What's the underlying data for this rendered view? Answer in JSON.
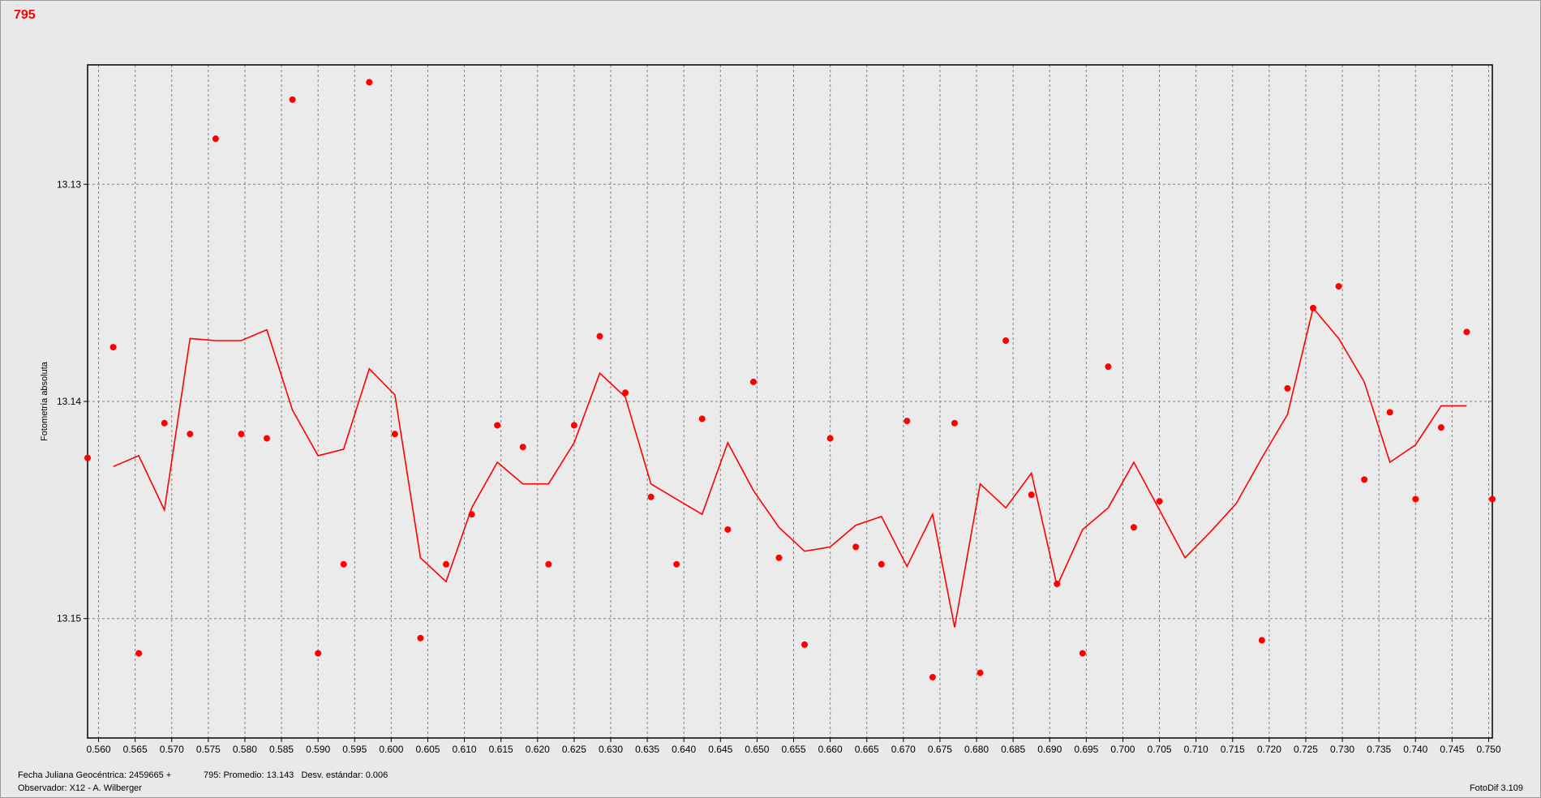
{
  "title": "795",
  "footer": {
    "jd_label": "Fecha Juliana Geocéntrica: 2459665 +",
    "observer": "Observador: X12 - A. Wilberger",
    "stats": "795: Promedio: 13.143   Desv. estándar: 0.006",
    "version": "FotoDif 3.109"
  },
  "colors": {
    "data": "#ff0000",
    "grid": "#808080",
    "background": "#e8e9ea"
  },
  "chart_data": {
    "type": "scatter",
    "ylabel": "Fotometría absoluta",
    "xlabel": "",
    "y_inverted": true,
    "xlim": [
      0.5585,
      0.7505
    ],
    "ylim": [
      13.1245,
      13.1555
    ],
    "x_ticks": [
      "0.560",
      "0.565",
      "0.570",
      "0.575",
      "0.580",
      "0.585",
      "0.590",
      "0.595",
      "0.600",
      "0.605",
      "0.610",
      "0.615",
      "0.620",
      "0.625",
      "0.630",
      "0.635",
      "0.640",
      "0.645",
      "0.650",
      "0.655",
      "0.660",
      "0.665",
      "0.670",
      "0.675",
      "0.680",
      "0.685",
      "0.690",
      "0.695",
      "0.700",
      "0.705",
      "0.710",
      "0.715",
      "0.720",
      "0.725",
      "0.730",
      "0.735",
      "0.740",
      "0.745",
      "0.750"
    ],
    "y_ticks": [
      "13.13",
      "13.14",
      "13.15"
    ],
    "grid": true,
    "series": [
      {
        "style": "markers",
        "points": [
          [
            0.5585,
            13.1426
          ],
          [
            0.562,
            13.1375
          ],
          [
            0.5655,
            13.1516
          ],
          [
            0.569,
            13.141
          ],
          [
            0.5725,
            13.1415
          ],
          [
            0.576,
            13.1279
          ],
          [
            0.5795,
            13.1415
          ],
          [
            0.583,
            13.1417
          ],
          [
            0.5865,
            13.1261
          ],
          [
            0.59,
            13.1516
          ],
          [
            0.5935,
            13.1475
          ],
          [
            0.597,
            13.1253
          ],
          [
            0.6005,
            13.1415
          ],
          [
            0.604,
            13.1509
          ],
          [
            0.6075,
            13.1475
          ],
          [
            0.611,
            13.1452
          ],
          [
            0.6145,
            13.1411
          ],
          [
            0.618,
            13.1421
          ],
          [
            0.6215,
            13.1475
          ],
          [
            0.625,
            13.1411
          ],
          [
            0.6285,
            13.137
          ],
          [
            0.632,
            13.1396
          ],
          [
            0.6355,
            13.1444
          ],
          [
            0.639,
            13.1475
          ],
          [
            0.6425,
            13.1408
          ],
          [
            0.646,
            13.1459
          ],
          [
            0.6495,
            13.1391
          ],
          [
            0.653,
            13.1472
          ],
          [
            0.6565,
            13.1512
          ],
          [
            0.66,
            13.1417
          ],
          [
            0.6635,
            13.1467
          ],
          [
            0.667,
            13.1475
          ],
          [
            0.6705,
            13.1409
          ],
          [
            0.674,
            13.1527
          ],
          [
            0.677,
            13.141
          ],
          [
            0.6805,
            13.1525
          ],
          [
            0.684,
            13.1372
          ],
          [
            0.6875,
            13.1443
          ],
          [
            0.691,
            13.1484
          ],
          [
            0.6945,
            13.1516
          ],
          [
            0.698,
            13.1384
          ],
          [
            0.7015,
            13.1458
          ],
          [
            0.705,
            13.1446
          ],
          [
            0.719,
            13.151
          ],
          [
            0.7225,
            13.1394
          ],
          [
            0.726,
            13.1357
          ],
          [
            0.7295,
            13.1347
          ],
          [
            0.733,
            13.1436
          ],
          [
            0.7365,
            13.1405
          ],
          [
            0.74,
            13.1445
          ],
          [
            0.7435,
            13.1412
          ],
          [
            0.747,
            13.1368
          ],
          [
            0.7505,
            13.1445
          ]
        ]
      },
      {
        "style": "line",
        "points": [
          [
            0.562,
            13.143
          ],
          [
            0.5655,
            13.1425
          ],
          [
            0.569,
            13.145
          ],
          [
            0.5725,
            13.1371
          ],
          [
            0.576,
            13.1372
          ],
          [
            0.5795,
            13.1372
          ],
          [
            0.583,
            13.1367
          ],
          [
            0.5865,
            13.1404
          ],
          [
            0.59,
            13.1425
          ],
          [
            0.5935,
            13.1422
          ],
          [
            0.597,
            13.1385
          ],
          [
            0.6005,
            13.1397
          ],
          [
            0.604,
            13.1472
          ],
          [
            0.6075,
            13.1483
          ],
          [
            0.611,
            13.1449
          ],
          [
            0.6145,
            13.1428
          ],
          [
            0.618,
            13.1438
          ],
          [
            0.6215,
            13.1438
          ],
          [
            0.625,
            13.1419
          ],
          [
            0.6285,
            13.1387
          ],
          [
            0.632,
            13.1398
          ],
          [
            0.6355,
            13.1438
          ],
          [
            0.639,
            13.1445
          ],
          [
            0.6425,
            13.1452
          ],
          [
            0.646,
            13.1419
          ],
          [
            0.6495,
            13.1441
          ],
          [
            0.653,
            13.1458
          ],
          [
            0.6565,
            13.1469
          ],
          [
            0.66,
            13.1467
          ],
          [
            0.6635,
            13.1457
          ],
          [
            0.667,
            13.1453
          ],
          [
            0.6705,
            13.1476
          ],
          [
            0.674,
            13.1452
          ],
          [
            0.677,
            13.1504
          ],
          [
            0.6805,
            13.1438
          ],
          [
            0.684,
            13.1449
          ],
          [
            0.6875,
            13.1433
          ],
          [
            0.691,
            13.1485
          ],
          [
            0.6945,
            13.1459
          ],
          [
            0.698,
            13.1449
          ],
          [
            0.7015,
            13.1428
          ],
          [
            0.705,
            13.145
          ],
          [
            0.7085,
            13.1472
          ],
          [
            0.712,
            13.146
          ],
          [
            0.7155,
            13.1447
          ],
          [
            0.719,
            13.1426
          ],
          [
            0.7225,
            13.1406
          ],
          [
            0.726,
            13.1357
          ],
          [
            0.7295,
            13.1371
          ],
          [
            0.733,
            13.1391
          ],
          [
            0.7365,
            13.1428
          ],
          [
            0.74,
            13.142
          ],
          [
            0.7435,
            13.1402
          ],
          [
            0.747,
            13.1402
          ]
        ]
      }
    ]
  }
}
